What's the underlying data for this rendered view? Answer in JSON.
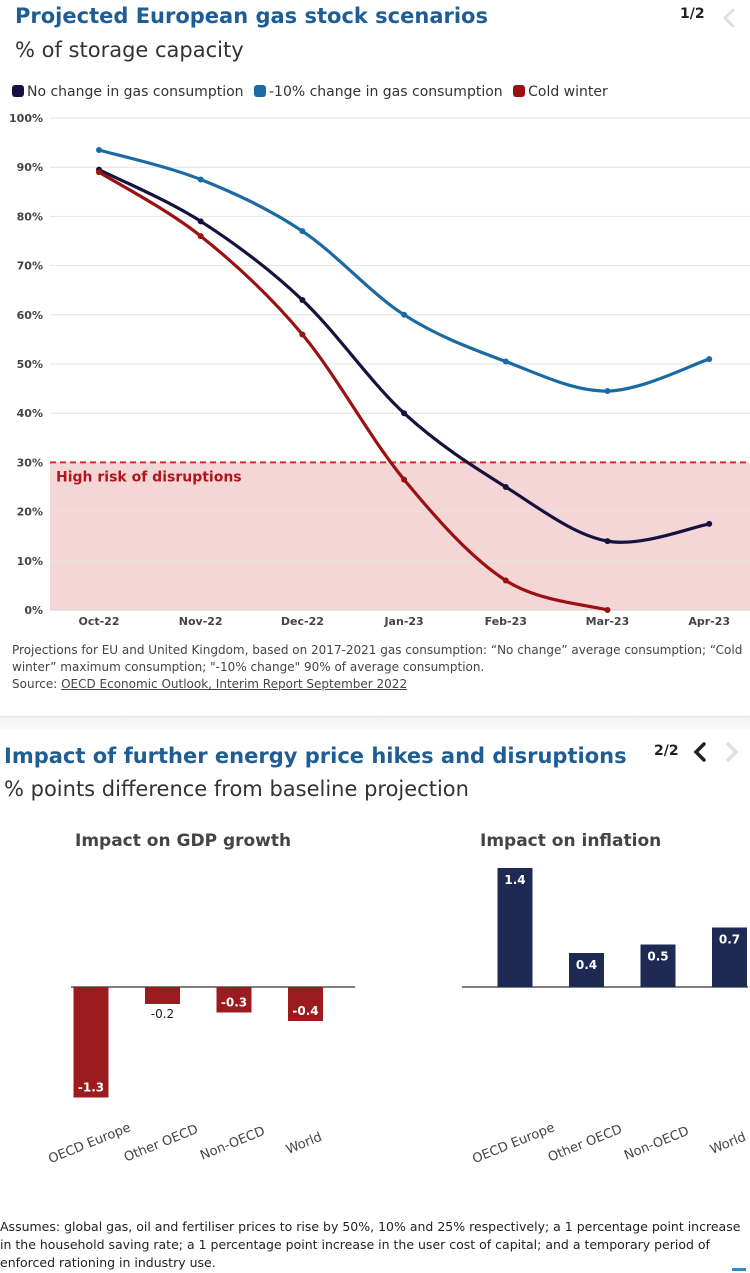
{
  "panel1": {
    "title": "Projected European gas stock scenarios",
    "subtitle": "% of storage capacity",
    "pager": "1/2",
    "note": "Projections for EU and United Kingdom, based on 2017-2021 gas consumption: “No change” average consumption; “Cold winter” maximum consumption; \"-10% change\" 90% of average consumption.",
    "source_prefix": "Source: ",
    "source_link": "OECD Economic Outlook, Interim Report September 2022",
    "risk_label": "High risk of disruptions"
  },
  "panel2": {
    "title": "Impact of further energy price hikes and disruptions",
    "subtitle": "% points difference from baseline projection",
    "pager": "2/2",
    "footnote": "Assumes: global gas, oil and fertiliser prices to rise by 50%, 10% and 25% respectively; a 1 percentage point increase in the household saving rate; a 1 percentage point increase in the user cost of capital; and a temporary period of enforced rationing in industry use."
  },
  "colors": {
    "no_change": "#14123f",
    "minus10": "#1c6aa3",
    "cold": "#9b1111",
    "risk_zone": "#f5d6d7",
    "risk_line": "#d42d2d",
    "gdp_bar": "#9c1b1e",
    "inflation_bar": "#1e2a52"
  },
  "chart_data": [
    {
      "type": "line",
      "title": "Projected European gas stock scenarios",
      "subtitle": "% of storage capacity",
      "x": [
        "Oct-22",
        "Nov-22",
        "Dec-22",
        "Jan-23",
        "Feb-23",
        "Mar-23",
        "Apr-23"
      ],
      "ylim": [
        0,
        100
      ],
      "yticks": [
        "0%",
        "10%",
        "20%",
        "30%",
        "40%",
        "50%",
        "60%",
        "70%",
        "80%",
        "90%",
        "100%"
      ],
      "threshold": 30,
      "series": [
        {
          "name": "No change in gas consumption",
          "key": "no_change",
          "values": [
            89.5,
            79,
            63,
            40,
            25,
            14,
            17.5
          ]
        },
        {
          "name": "-10% change in gas consumption",
          "key": "minus10",
          "values": [
            93.5,
            87.5,
            77,
            60,
            50.5,
            44.5,
            51
          ]
        },
        {
          "name": "Cold winter",
          "key": "cold",
          "values": [
            89,
            76,
            56,
            26.5,
            6,
            0,
            null
          ]
        }
      ]
    },
    {
      "type": "bar",
      "title": "Impact on GDP growth",
      "categories": [
        "OECD Europe",
        "Other OECD",
        "Non-OECD",
        "World"
      ],
      "values": [
        -1.3,
        -0.2,
        -0.3,
        -0.4
      ],
      "labels": [
        "-1.3",
        "-0.2",
        "-0.3",
        "-0.4"
      ]
    },
    {
      "type": "bar",
      "title": "Impact on inflation",
      "categories": [
        "OECD Europe",
        "Other OECD",
        "Non-OECD",
        "World"
      ],
      "values": [
        1.4,
        0.4,
        0.5,
        0.7
      ],
      "labels": [
        "1.4",
        "0.4",
        "0.5",
        "0.7"
      ]
    }
  ]
}
